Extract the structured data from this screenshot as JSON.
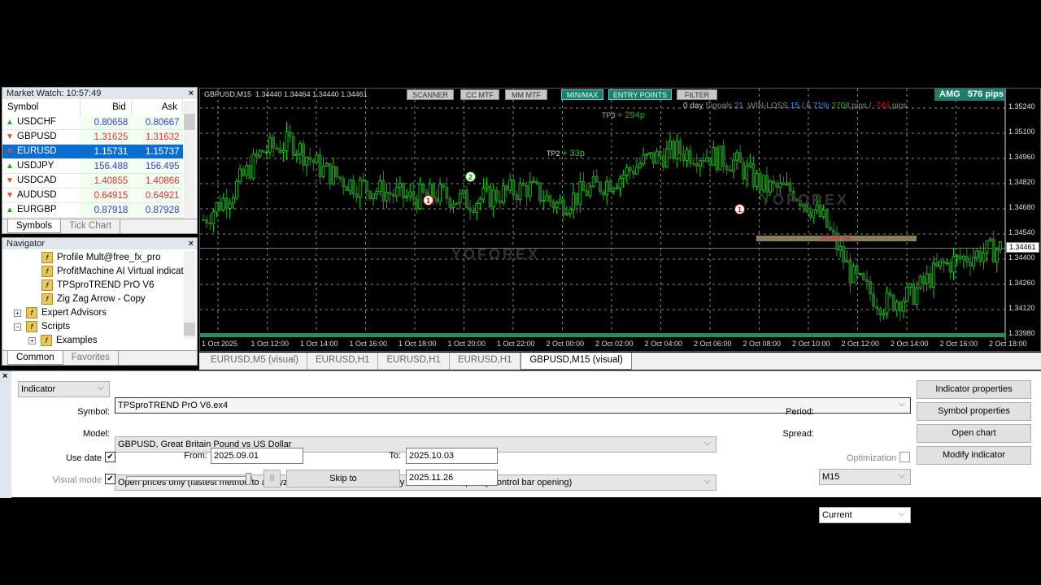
{
  "market_watch": {
    "title": "Market Watch: 10:57:49",
    "columns": [
      "Symbol",
      "Bid",
      "Ask"
    ],
    "rows": [
      {
        "symbol": "USDCHF",
        "bid": "0.80658",
        "ask": "0.80667",
        "dir": "up"
      },
      {
        "symbol": "GBPUSD",
        "bid": "1.31625",
        "ask": "1.31632",
        "dir": "down"
      },
      {
        "symbol": "EURUSD",
        "bid": "1.15731",
        "ask": "1.15737",
        "dir": "down",
        "selected": true
      },
      {
        "symbol": "USDJPY",
        "bid": "156.488",
        "ask": "156.495",
        "dir": "up"
      },
      {
        "symbol": "USDCAD",
        "bid": "1.40855",
        "ask": "1.40866",
        "dir": "down"
      },
      {
        "symbol": "AUDUSD",
        "bid": "0.64915",
        "ask": "0.64921",
        "dir": "down"
      },
      {
        "symbol": "EURGBP",
        "bid": "0.87918",
        "ask": "0.87928",
        "dir": "up"
      }
    ],
    "tabs": [
      "Symbols",
      "Tick Chart"
    ]
  },
  "navigator": {
    "title": "Navigator",
    "items": [
      {
        "label": "Profile Mult@free_fx_pro",
        "level": 2
      },
      {
        "label": "ProfitMachine AI Virtual indicat",
        "level": 2
      },
      {
        "label": "TPSproTREND PrO V6",
        "level": 2
      },
      {
        "label": "Zig Zag Arrow - Copy",
        "level": 2
      },
      {
        "label": "Expert Advisors",
        "level": 1
      },
      {
        "label": "Scripts",
        "level": 1
      },
      {
        "label": "Examples",
        "level": 2
      }
    ],
    "tabs": [
      "Common",
      "Favorites"
    ]
  },
  "chart": {
    "info": "GBPUSD,M15  1.34440 1.34464 1.34440 1.34461",
    "buttons": [
      "SCANNER",
      "CC MTF",
      "MM MTF",
      "MIN/MAX",
      "ENTRY POINTS",
      "FILTER"
    ],
    "stats": {
      "days": "0 day",
      "signals_label": "Signals",
      "signals": "21",
      "winloss_label": "WIN-LOSS",
      "wins": "15",
      "losses": "6",
      "winrate": "71%",
      "pips_win": "2708",
      "pips_loss": "-746",
      "pips_unit": "pips"
    },
    "amg": {
      "label": "AMG",
      "value": "576 pips"
    },
    "annotations": {
      "tp3": "TP3",
      "tp3_val": "+ 294p",
      "tp2": "TP2",
      "tp2_val": "+ 33p",
      "move_sl": "move SL",
      "marker1": "1",
      "marker2": "2"
    },
    "watermark": "YOFOREX",
    "current_price": "1.34461",
    "price_ticks": [
      "1.35240",
      "1.35100",
      "1.34960",
      "1.34820",
      "1.34680",
      "1.34540",
      "1.34400",
      "1.34260",
      "1.34120",
      "1.33980"
    ],
    "time_ticks": [
      "1 Oct 2025",
      "1 Oct 12:00",
      "1 Oct 14:00",
      "1 Oct 16:00",
      "1 Oct 18:00",
      "1 Oct 20:00",
      "1 Oct 22:00",
      "2 Oct 00:00",
      "2 Oct 02:00",
      "2 Oct 04:00",
      "2 Oct 06:00",
      "2 Oct 08:00",
      "2 Oct 10:00",
      "2 Oct 12:00",
      "2 Oct 14:00",
      "2 Oct 16:00",
      "2 Oct 18:00"
    ],
    "colors": {
      "bull": "#00e000",
      "bear": "#1a5a1a",
      "background": "#000000",
      "grid": "#8a8a8a"
    }
  },
  "chart_data": {
    "type": "candlestick",
    "ylim": [
      1.3398,
      1.3531
    ],
    "approx_close": [
      1.3462,
      1.3478,
      1.35,
      1.3505,
      1.349,
      1.3482,
      1.3478,
      1.3474,
      1.3476,
      1.3472,
      1.3476,
      1.348,
      1.347,
      1.3478,
      1.3485,
      1.3495,
      1.35,
      1.3498,
      1.3494,
      1.348,
      1.3478,
      1.3462,
      1.343,
      1.3415,
      1.342,
      1.3436,
      1.3442,
      1.3446
    ]
  },
  "chart_tabs": [
    {
      "label": "EURUSD,M5 (visual)"
    },
    {
      "label": "EURUSD,H1"
    },
    {
      "label": "EURUSD,H1"
    },
    {
      "label": "EURUSD,H1"
    },
    {
      "label": "GBPUSD,M15 (visual)",
      "active": true
    }
  ],
  "tester": {
    "type": "Indicator",
    "file": "TPSproTREND PrO V6.ex4",
    "symbol_label": "Symbol:",
    "symbol": "GBPUSD, Great Britain Pound vs US Dollar",
    "model_label": "Model:",
    "model": "Open prices only (fastest method to analyze the bar just completed, only for EAs that explicitly control bar opening)",
    "use_date_label": "Use date",
    "use_date": true,
    "from_label": "From:",
    "from": "2025.09.01",
    "to_label": "To:",
    "to": "2025.10.03",
    "visual_label": "Visual mode",
    "visual": true,
    "speed_percent": 100,
    "pause": "II",
    "skip_label": "Skip to",
    "skip_date": "2025.11.26",
    "period_label": "Period:",
    "period": "M15",
    "spread_label": "Spread:",
    "spread": "Current",
    "optimization_label": "Optimization",
    "optimization": false,
    "buttons": [
      "Indicator properties",
      "Symbol properties",
      "Open chart",
      "Modify indicator"
    ]
  }
}
